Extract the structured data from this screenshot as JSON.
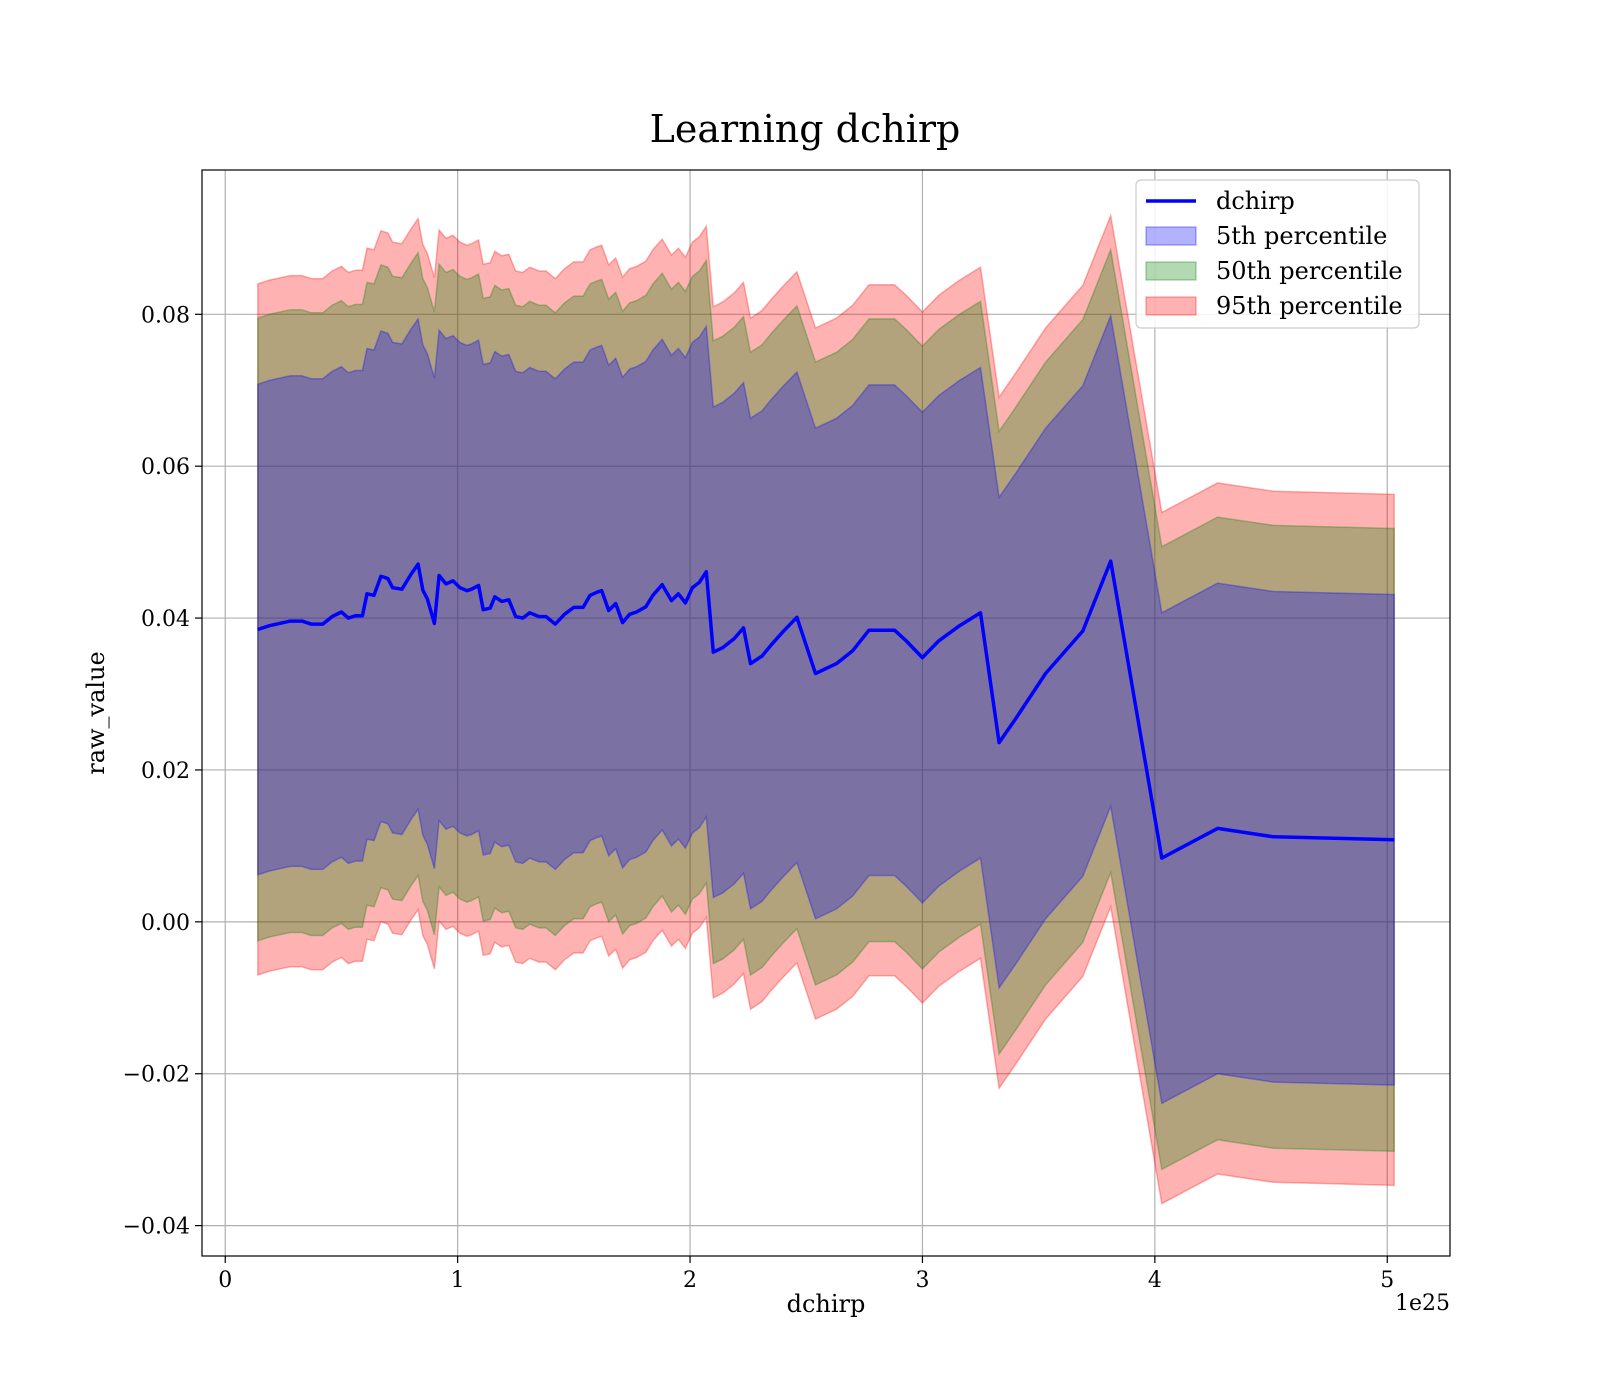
{
  "chart_data": {
    "type": "area",
    "title": "Learning dchirp",
    "xlabel": "dchirp",
    "ylabel": "raw_value",
    "x_offset_label": "1e25",
    "xlim": [
      -0.1,
      5.27
    ],
    "ylim": [
      -0.044,
      0.099
    ],
    "x_ticks": [
      0,
      1,
      2,
      3,
      4,
      5
    ],
    "x_tick_labels": [
      "0",
      "1",
      "2",
      "3",
      "4",
      "5"
    ],
    "y_ticks": [
      -0.04,
      -0.02,
      0.0,
      0.02,
      0.04,
      0.06,
      0.08
    ],
    "y_tick_labels": [
      "−0.04",
      "−0.02",
      "0.00",
      "0.02",
      "0.04",
      "0.06",
      "0.08"
    ],
    "grid": true,
    "legend_position": "top-right",
    "colors": {
      "line": "#0000ff",
      "p5": "#0000ff",
      "p50": "#008000",
      "p95": "#ff0000"
    },
    "legend": [
      {
        "label": "dchirp",
        "kind": "line",
        "color": "#0000ff"
      },
      {
        "label": "5th percentile",
        "kind": "patch",
        "color": "#0000ff"
      },
      {
        "label": "50th percentile",
        "kind": "patch",
        "color": "#008000"
      },
      {
        "label": "95th percentile",
        "kind": "patch",
        "color": "#ff0000"
      }
    ],
    "series": [
      {
        "name": "dchirp",
        "x": [
          0.14,
          0.19,
          0.28,
          0.33,
          0.37,
          0.42,
          0.46,
          0.5,
          0.53,
          0.56,
          0.59,
          0.61,
          0.64,
          0.67,
          0.7,
          0.72,
          0.76,
          0.8,
          0.83,
          0.85,
          0.87,
          0.9,
          0.92,
          0.95,
          0.98,
          1.01,
          1.04,
          1.06,
          1.09,
          1.11,
          1.14,
          1.16,
          1.19,
          1.22,
          1.25,
          1.28,
          1.31,
          1.35,
          1.38,
          1.42,
          1.46,
          1.5,
          1.54,
          1.57,
          1.6,
          1.62,
          1.65,
          1.68,
          1.71,
          1.74,
          1.77,
          1.81,
          1.84,
          1.88,
          1.92,
          1.95,
          1.98,
          2.01,
          2.04,
          2.07,
          2.1,
          2.14,
          2.19,
          2.23,
          2.26,
          2.31,
          2.35,
          2.4,
          2.46,
          2.54,
          2.63,
          2.7,
          2.77,
          2.82,
          2.88,
          2.93,
          3.0,
          3.07,
          3.16,
          3.25,
          3.33,
          3.4,
          3.53,
          3.69,
          3.81,
          4.03,
          4.27,
          4.51,
          5.03
        ],
        "mean": [
          0.0385,
          0.039,
          0.0396,
          0.0396,
          0.0392,
          0.0392,
          0.0402,
          0.0408,
          0.04,
          0.0403,
          0.0403,
          0.0432,
          0.043,
          0.0455,
          0.0452,
          0.044,
          0.0438,
          0.0458,
          0.0471,
          0.0437,
          0.0425,
          0.0393,
          0.0456,
          0.0445,
          0.0449,
          0.044,
          0.0436,
          0.0438,
          0.0443,
          0.0411,
          0.0413,
          0.0428,
          0.0422,
          0.0424,
          0.0402,
          0.04,
          0.0407,
          0.0402,
          0.0402,
          0.0392,
          0.0405,
          0.0414,
          0.0414,
          0.043,
          0.0434,
          0.0436,
          0.041,
          0.0419,
          0.0394,
          0.0405,
          0.0408,
          0.0415,
          0.043,
          0.0444,
          0.0423,
          0.0432,
          0.042,
          0.044,
          0.0447,
          0.0461,
          0.0355,
          0.0361,
          0.0373,
          0.0387,
          0.034,
          0.035,
          0.0365,
          0.0382,
          0.0401,
          0.0327,
          0.034,
          0.0357,
          0.0384,
          0.0384,
          0.0384,
          0.037,
          0.0348,
          0.037,
          0.039,
          0.0407,
          0.0236,
          0.0267,
          0.0327,
          0.0383,
          0.0475,
          0.0084,
          0.0123,
          0.0112,
          0.0108
        ],
        "p5_offset": 0.0323,
        "p50_offset": 0.041,
        "p95_offset": 0.0455
      }
    ]
  }
}
